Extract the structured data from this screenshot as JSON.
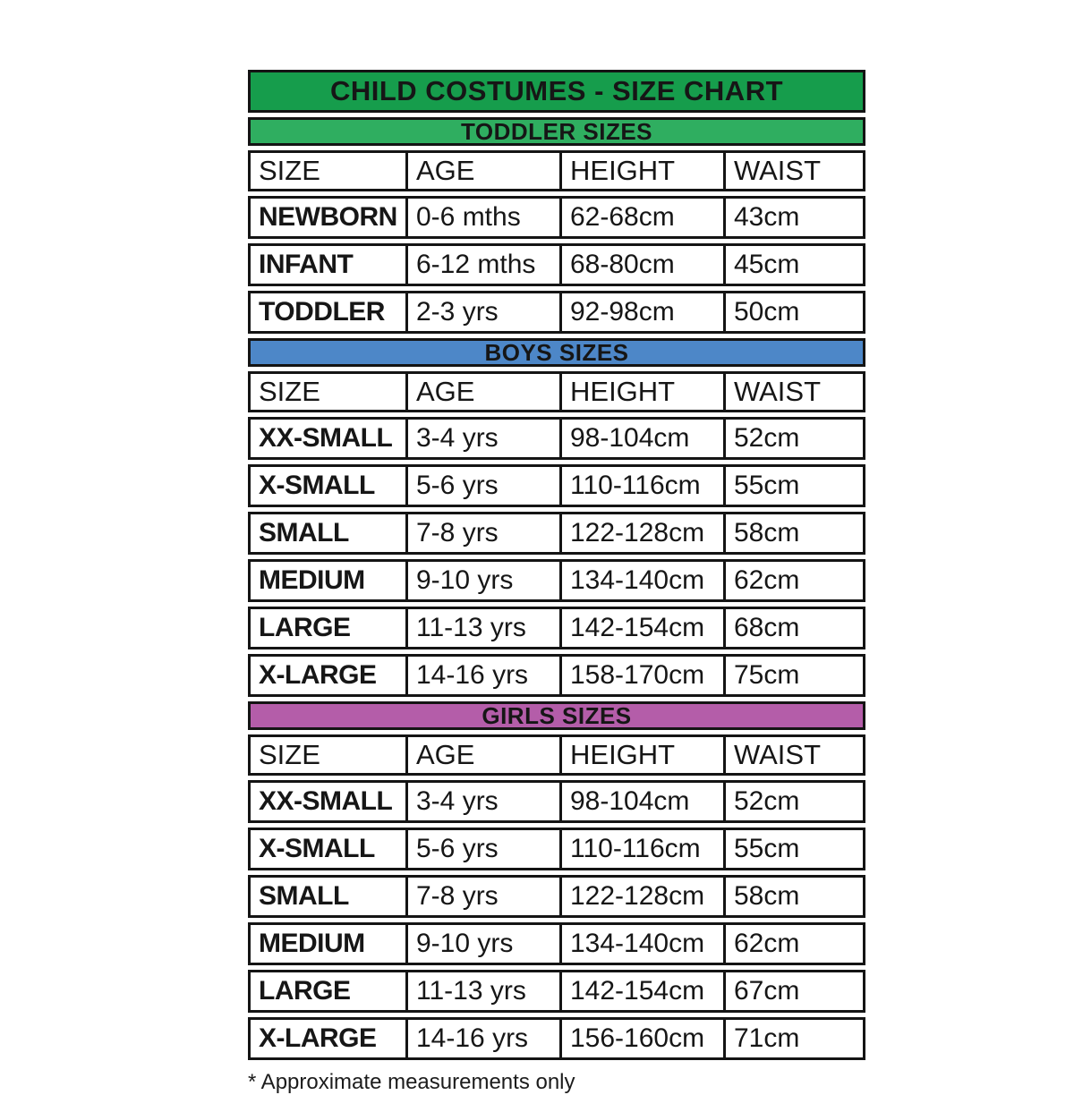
{
  "page": {
    "title": "CHILD COSTUMES - SIZE CHART",
    "footnote": "* Approximate measurements only"
  },
  "colors": {
    "title_bg": "#169d4c",
    "border": "#141414",
    "text": "#161616"
  },
  "table": {
    "columns": [
      "SIZE",
      "AGE",
      "HEIGHT",
      "WAIST"
    ],
    "sections": [
      {
        "label": "TODDLER SIZES",
        "band_color": "#2fae60",
        "rows": [
          {
            "size": "NEWBORN",
            "age": "0-6 mths",
            "height": "62-68cm",
            "waist": "43cm"
          },
          {
            "size": "INFANT",
            "age": "6-12 mths",
            "height": "68-80cm",
            "waist": "45cm"
          },
          {
            "size": "TODDLER",
            "age": "2-3 yrs",
            "height": "92-98cm",
            "waist": "50cm"
          }
        ]
      },
      {
        "label": "BOYS SIZES",
        "band_color": "#4d87c8",
        "rows": [
          {
            "size": "XX-SMALL",
            "age": "3-4 yrs",
            "height": "98-104cm",
            "waist": "52cm"
          },
          {
            "size": "X-SMALL",
            "age": "5-6 yrs",
            "height": "110-116cm",
            "waist": "55cm"
          },
          {
            "size": "SMALL",
            "age": "7-8 yrs",
            "height": "122-128cm",
            "waist": "58cm"
          },
          {
            "size": "MEDIUM",
            "age": "9-10 yrs",
            "height": "134-140cm",
            "waist": "62cm"
          },
          {
            "size": "LARGE",
            "age": "11-13 yrs",
            "height": "142-154cm",
            "waist": "68cm"
          },
          {
            "size": "X-LARGE",
            "age": "14-16 yrs",
            "height": "158-170cm",
            "waist": "75cm"
          }
        ]
      },
      {
        "label": "GIRLS SIZES",
        "band_color": "#b45da9",
        "rows": [
          {
            "size": "XX-SMALL",
            "age": "3-4 yrs",
            "height": "98-104cm",
            "waist": "52cm"
          },
          {
            "size": "X-SMALL",
            "age": "5-6 yrs",
            "height": "110-116cm",
            "waist": "55cm"
          },
          {
            "size": "SMALL",
            "age": "7-8 yrs",
            "height": "122-128cm",
            "waist": "58cm"
          },
          {
            "size": "MEDIUM",
            "age": "9-10 yrs",
            "height": "134-140cm",
            "waist": "62cm"
          },
          {
            "size": "LARGE",
            "age": "11-13 yrs",
            "height": "142-154cm",
            "waist": "67cm"
          },
          {
            "size": "X-LARGE",
            "age": "14-16 yrs",
            "height": "156-160cm",
            "waist": "71cm"
          }
        ]
      }
    ]
  }
}
